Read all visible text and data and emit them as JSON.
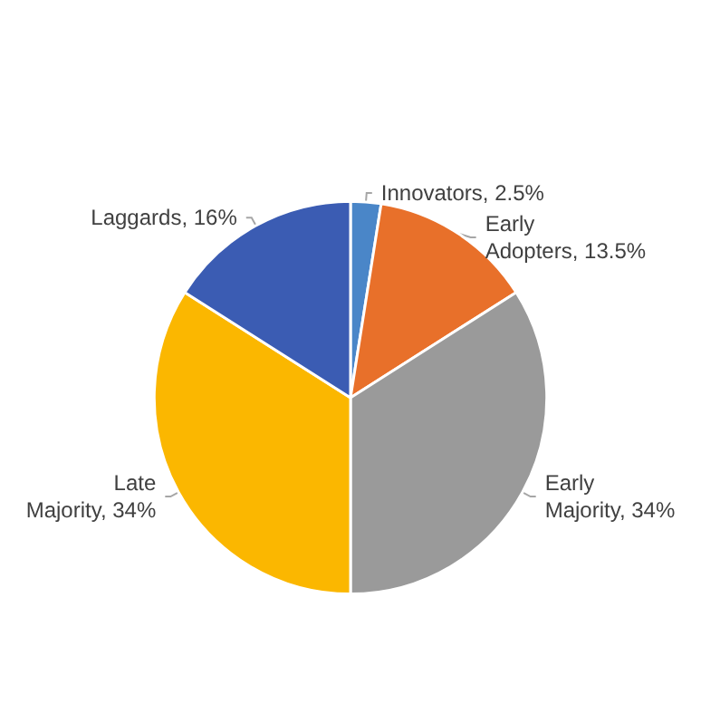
{
  "chart_data": {
    "type": "pie",
    "categories": [
      "Innovators",
      "Early Adopters",
      "Early Majority",
      "Late Majority",
      "Laggards"
    ],
    "values": [
      2.5,
      13.5,
      34,
      34,
      16
    ],
    "value_labels": [
      "2.5%",
      "13.5%",
      "34%",
      "34%",
      "16%"
    ],
    "colors": [
      "#4a86c8",
      "#e8702a",
      "#9a9a9a",
      "#fbb700",
      "#3b5cb3"
    ],
    "legend": false
  }
}
